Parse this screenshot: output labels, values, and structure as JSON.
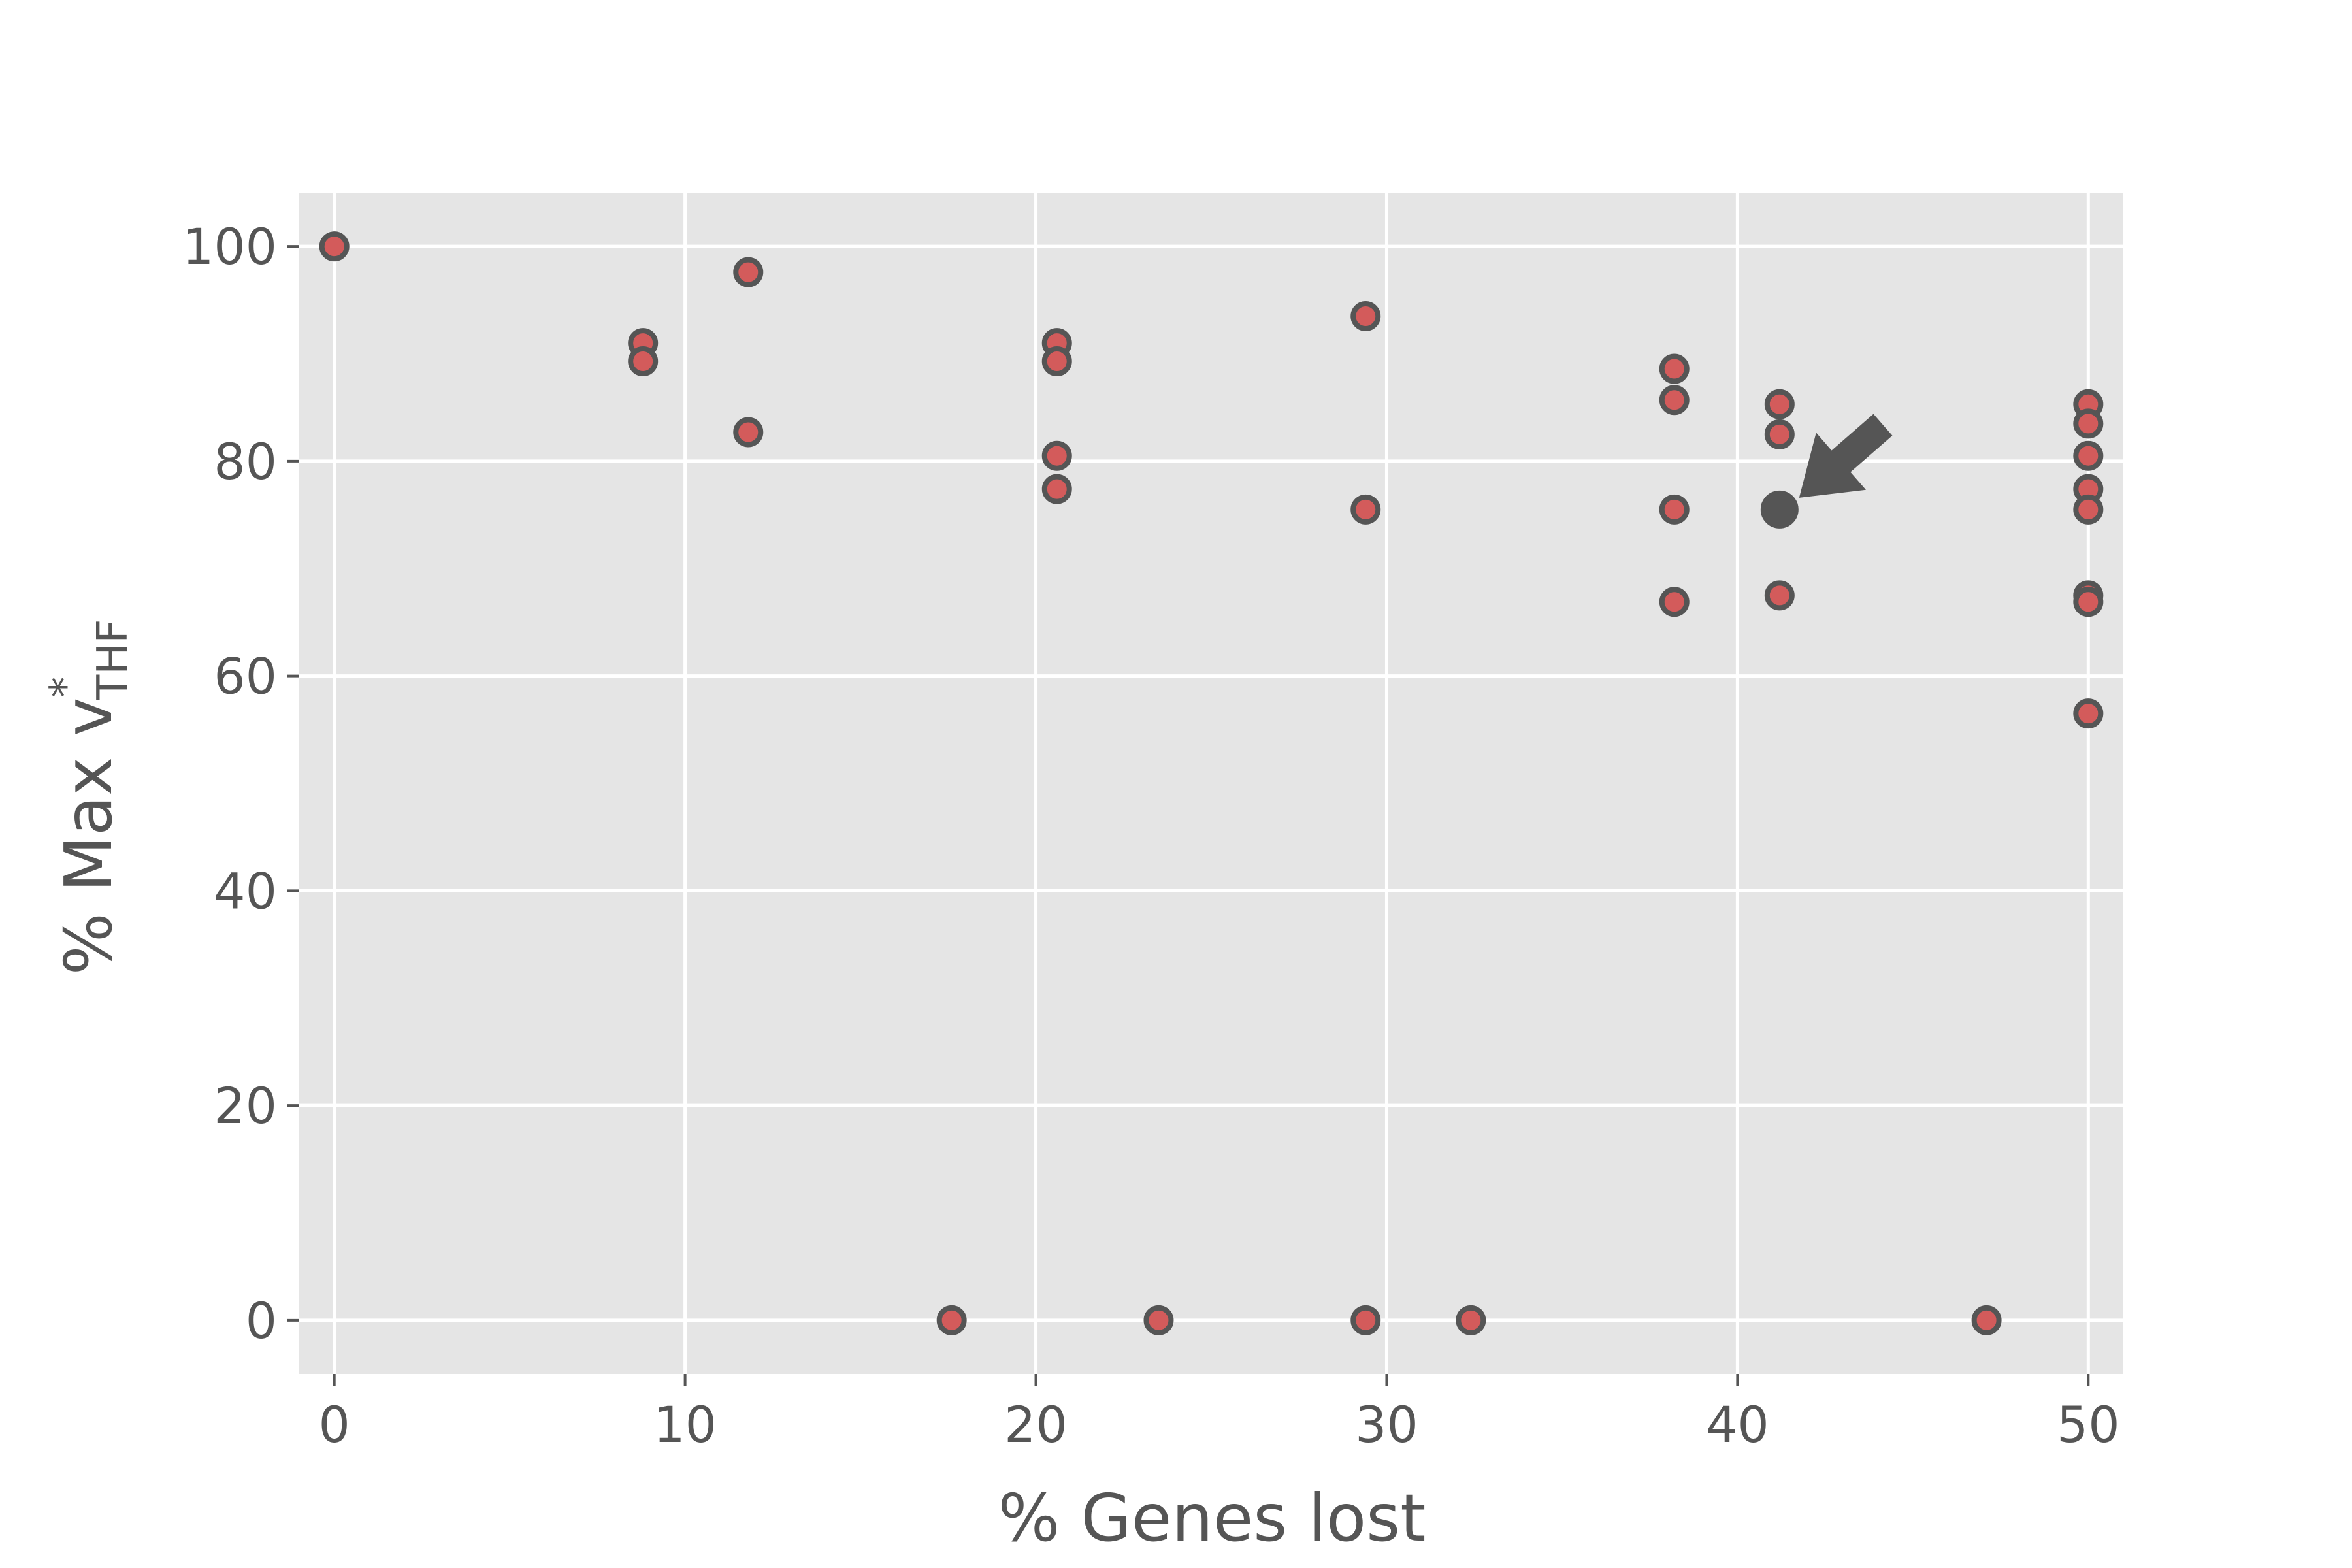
{
  "chart_data": {
    "type": "scatter",
    "xlabel": "% Genes lost",
    "ylabel": {
      "main": "% Max v",
      "superscript": "*",
      "subscript": "THF"
    },
    "xlim": [
      -1,
      51
    ],
    "ylim": [
      -5,
      105
    ],
    "xticks": [
      0,
      10,
      20,
      30,
      40,
      50
    ],
    "yticks": [
      0,
      20,
      40,
      60,
      80,
      100
    ],
    "grid": true,
    "background": "#e5e5e5",
    "colors": {
      "point_fill": "#d35b5b",
      "point_edge": "#555555",
      "highlight": "#555555",
      "grid": "#ffffff",
      "text": "#555555"
    },
    "points": [
      {
        "x": 0,
        "y": 100
      },
      {
        "x": 8.8,
        "y": 91
      },
      {
        "x": 8.8,
        "y": 89.3
      },
      {
        "x": 11.8,
        "y": 97.6
      },
      {
        "x": 11.8,
        "y": 82.7
      },
      {
        "x": 17.6,
        "y": 0
      },
      {
        "x": 20.6,
        "y": 91
      },
      {
        "x": 20.6,
        "y": 89.3
      },
      {
        "x": 20.6,
        "y": 80.5
      },
      {
        "x": 20.6,
        "y": 77.4
      },
      {
        "x": 23.5,
        "y": 0
      },
      {
        "x": 29.4,
        "y": 93.5
      },
      {
        "x": 29.4,
        "y": 75.5
      },
      {
        "x": 29.4,
        "y": 0
      },
      {
        "x": 32.4,
        "y": 0
      },
      {
        "x": 38.2,
        "y": 88.6
      },
      {
        "x": 38.2,
        "y": 85.7
      },
      {
        "x": 38.2,
        "y": 75.5
      },
      {
        "x": 38.2,
        "y": 66.9
      },
      {
        "x": 41.2,
        "y": 85.3
      },
      {
        "x": 41.2,
        "y": 82.5
      },
      {
        "x": 41.2,
        "y": 67.5
      },
      {
        "x": 47.1,
        "y": 0
      },
      {
        "x": 50,
        "y": 85.3
      },
      {
        "x": 50,
        "y": 83.5
      },
      {
        "x": 50,
        "y": 80.5
      },
      {
        "x": 50,
        "y": 77.4
      },
      {
        "x": 50,
        "y": 75.5
      },
      {
        "x": 50,
        "y": 67.5
      },
      {
        "x": 50,
        "y": 66.9
      },
      {
        "x": 50,
        "y": 56.5
      }
    ],
    "highlighted_point": {
      "x": 41.2,
      "y": 75.5
    },
    "annotation": "arrow pointing to highlighted point"
  }
}
